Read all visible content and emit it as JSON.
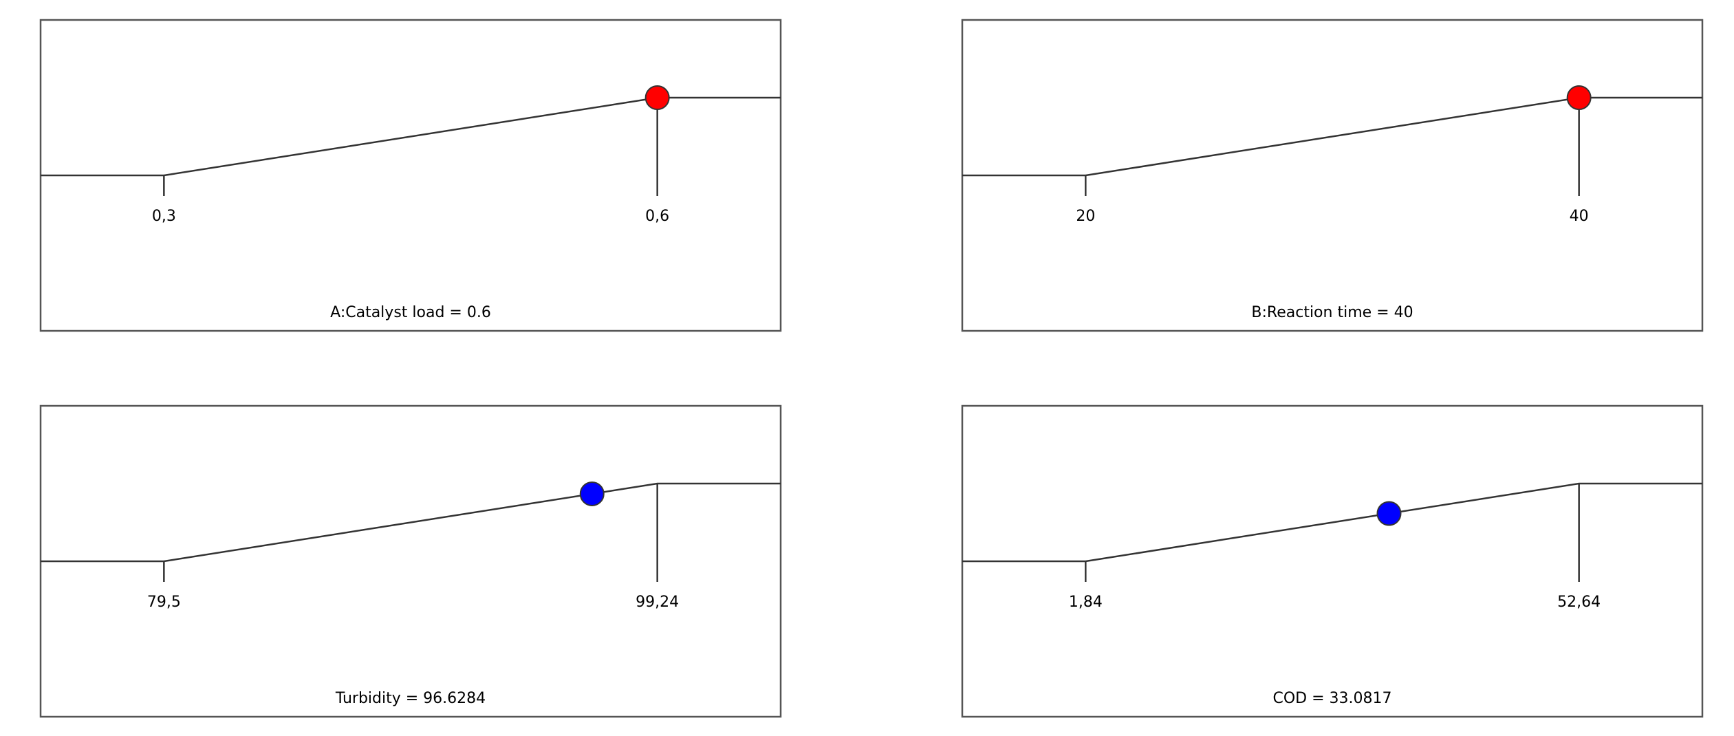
{
  "chart_data": [
    {
      "type": "ramp",
      "title": "A:Catalyst load = 0.6",
      "value": 0.6,
      "color": "#ff0000",
      "xlim": [
        0.225,
        0.675
      ],
      "xticks": [
        {
          "value": 0.3,
          "label": "0,3"
        },
        {
          "value": 0.6,
          "label": "0,6"
        }
      ]
    },
    {
      "type": "ramp",
      "title": "B:Reaction time = 40",
      "value": 40,
      "color": "#ff0000",
      "xlim": [
        15,
        45
      ],
      "xticks": [
        20,
        40
      ]
    },
    {
      "type": "ramp",
      "title": "Turbidity = 96.6284",
      "value": 96.6284,
      "color": "#0000ff",
      "xlim": [
        74.565,
        104.175
      ],
      "xticks": [
        {
          "value": 79.5,
          "label": "79,5"
        },
        {
          "value": 99.24,
          "label": "99,24"
        }
      ]
    },
    {
      "type": "ramp",
      "title": "COD = 33.0817",
      "value": 33.0817,
      "color": "#0000ff",
      "xlim": [
        -10.86,
        65.34
      ],
      "xticks": [
        {
          "value": 1.84,
          "label": "1,84"
        },
        {
          "value": 52.64,
          "label": "52,64"
        }
      ]
    }
  ]
}
